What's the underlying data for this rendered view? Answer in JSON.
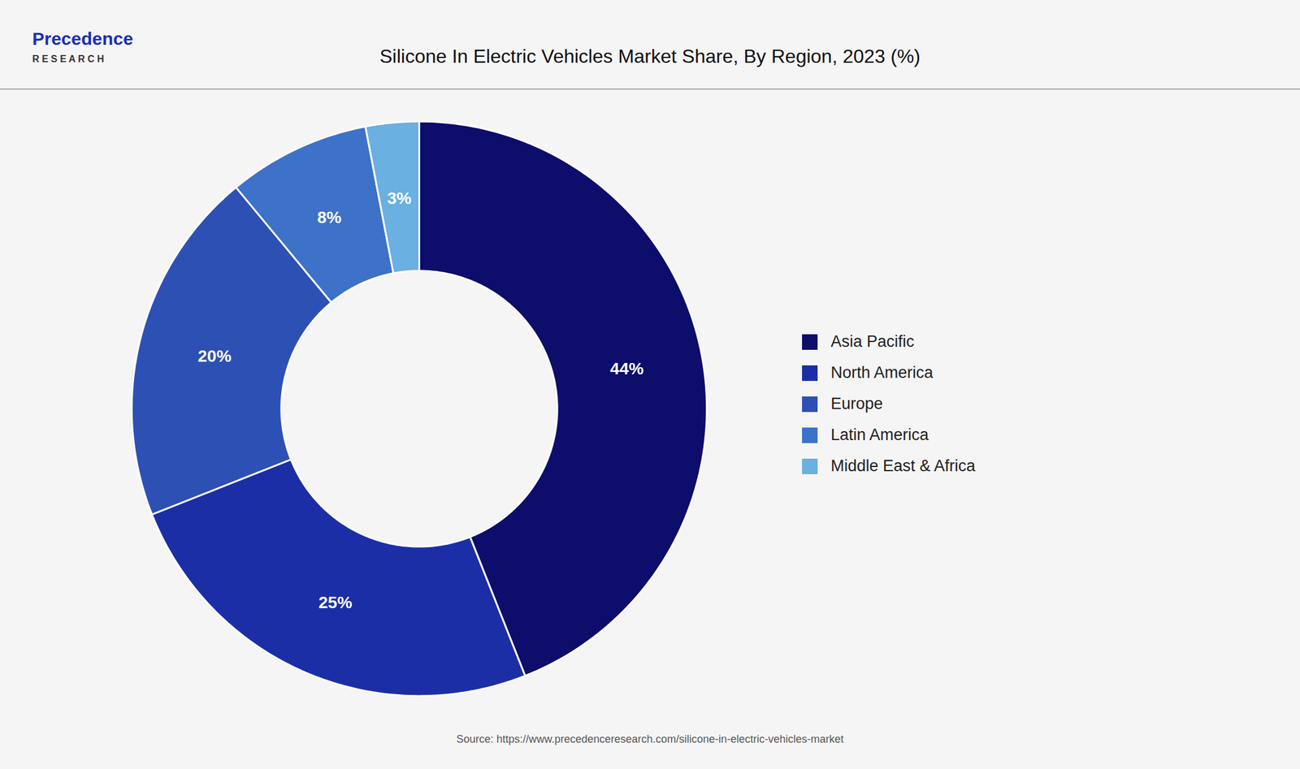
{
  "chart_data": {
    "type": "pie",
    "title": "Silicone In Electric Vehicles Market Share, By Region, 2023 (%)",
    "annotations": [
      "Precedence",
      "R E S E A R C H"
    ],
    "caption": "Source: https://www.precedenceresearch.com/silicone-in-electric-vehicles-market",
    "categories": [
      "Asia Pacific",
      "North America",
      "Europe",
      "Latin America",
      "Middle East & Africa"
    ],
    "values": [
      44,
      25,
      20,
      8,
      3
    ],
    "value_labels": [
      "44%",
      "25%",
      "20%",
      "8%",
      "3%"
    ],
    "colors": [
      "#0d0d6b",
      "#1c2ea6",
      "#2d50b5",
      "#3d72c8",
      "#6ab0e0"
    ],
    "data_labels": true,
    "legend": "right"
  }
}
